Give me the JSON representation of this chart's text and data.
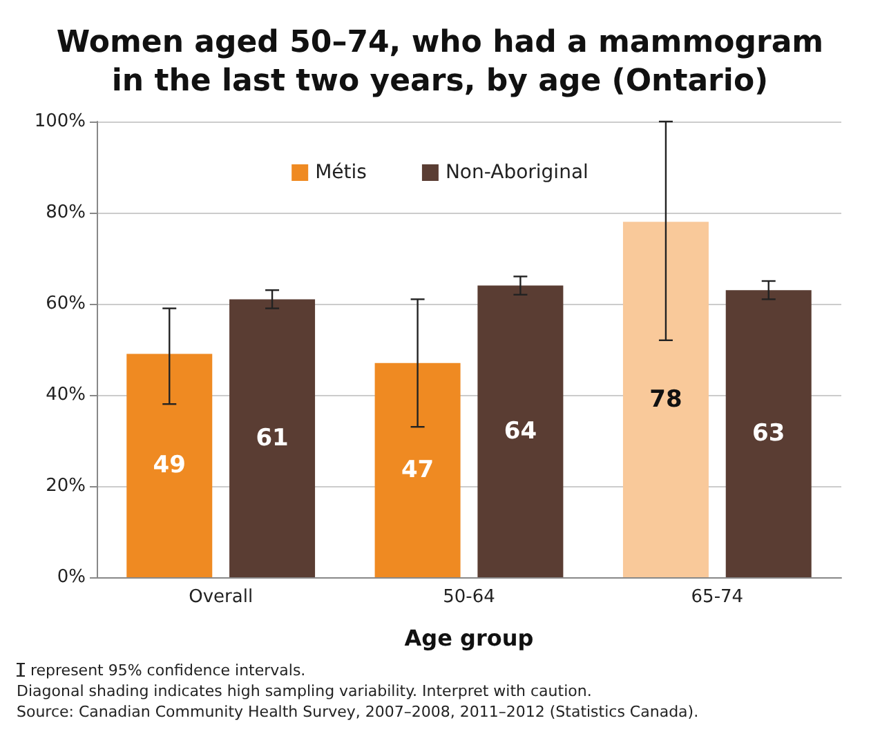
{
  "chart_data": {
    "type": "bar",
    "title": "Women aged 50–74, who had a mammogram\nin the last two years, by age (Ontario)",
    "xlabel": "Age group",
    "categories": [
      "Overall",
      "50-64",
      "65-74"
    ],
    "series": [
      {
        "name": "Métis",
        "color": "#ef8a22",
        "colors": [
          "#ef8a22",
          "#ef8a22",
          "#f9c99a"
        ],
        "values": [
          49,
          47,
          78
        ],
        "errors": [
          [
            38,
            59
          ],
          [
            33,
            61
          ],
          [
            52,
            100
          ]
        ]
      },
      {
        "name": "Non-Aboriginal",
        "color": "#5a3d33",
        "values": [
          61,
          64,
          63
        ],
        "errors": [
          [
            59,
            63
          ],
          [
            62,
            66
          ],
          [
            61,
            65
          ]
        ]
      }
    ],
    "ylim": [
      0,
      100
    ],
    "yticks": [
      {
        "value": 0,
        "label": "0%"
      },
      {
        "value": 20,
        "label": "20%"
      },
      {
        "value": 40,
        "label": "40%"
      },
      {
        "value": 60,
        "label": "60%"
      },
      {
        "value": 80,
        "label": "80%"
      },
      {
        "value": 100,
        "label": "100%"
      }
    ],
    "grid": "y",
    "legend": "top",
    "data_labels": true,
    "annotations": [
      "represent 95% confidence intervals.",
      "Diagonal shading indicates high sampling variability. Interpret with caution.",
      "Source: Canadian Community Health Survey, 2007–2008, 2011–2012 (Statistics Canada)."
    ]
  }
}
